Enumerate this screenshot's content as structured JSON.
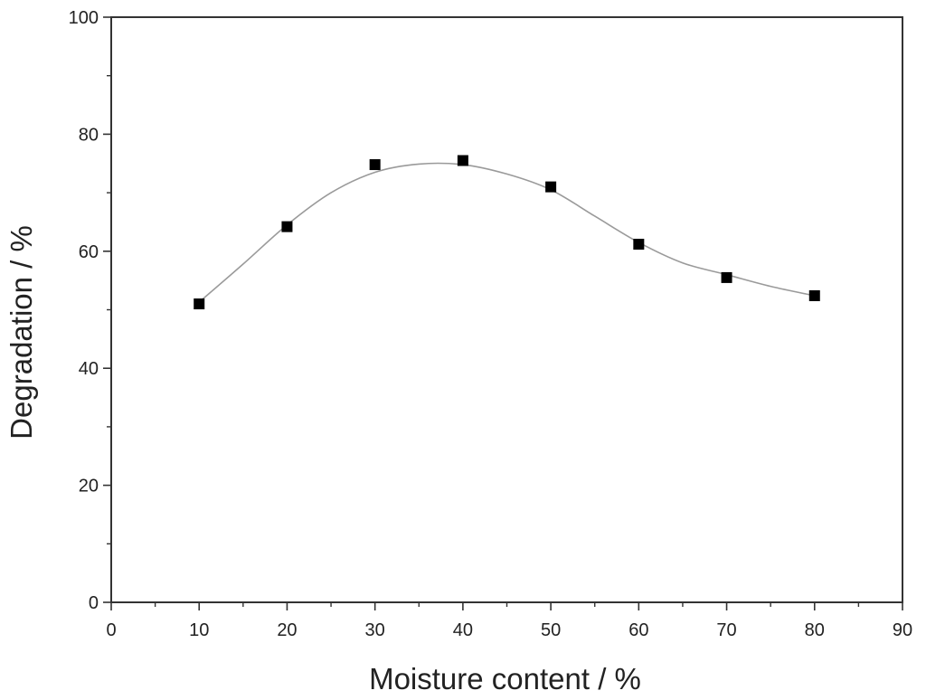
{
  "chart_data": {
    "type": "scatter",
    "title": "",
    "xlabel": "Moisture content / %",
    "ylabel": "Degradation / %",
    "xlim": [
      0,
      90
    ],
    "ylim": [
      0,
      100
    ],
    "x_ticks": [
      0,
      10,
      20,
      30,
      40,
      50,
      60,
      70,
      80,
      90
    ],
    "y_ticks": [
      0,
      20,
      40,
      60,
      80,
      100
    ],
    "grid": false,
    "legend": "none",
    "series": [
      {
        "marker": "filled-square",
        "color": "#000000",
        "x": [
          10,
          20,
          30,
          40,
          50,
          60,
          70,
          80
        ],
        "y": [
          51,
          64.2,
          74.8,
          75.5,
          71,
          61.2,
          55.5,
          52.4
        ]
      }
    ],
    "fit_curve": {
      "style": "smooth-line",
      "color": "#9a9a9a",
      "x": [
        10,
        15,
        20,
        25,
        30,
        35,
        40,
        45,
        50,
        55,
        60,
        65,
        70,
        75,
        80
      ],
      "y": [
        51.3,
        57.8,
        64.5,
        70,
        73.5,
        74.9,
        74.8,
        73.2,
        70.5,
        66,
        61.5,
        58,
        56,
        54,
        52.4
      ]
    }
  }
}
